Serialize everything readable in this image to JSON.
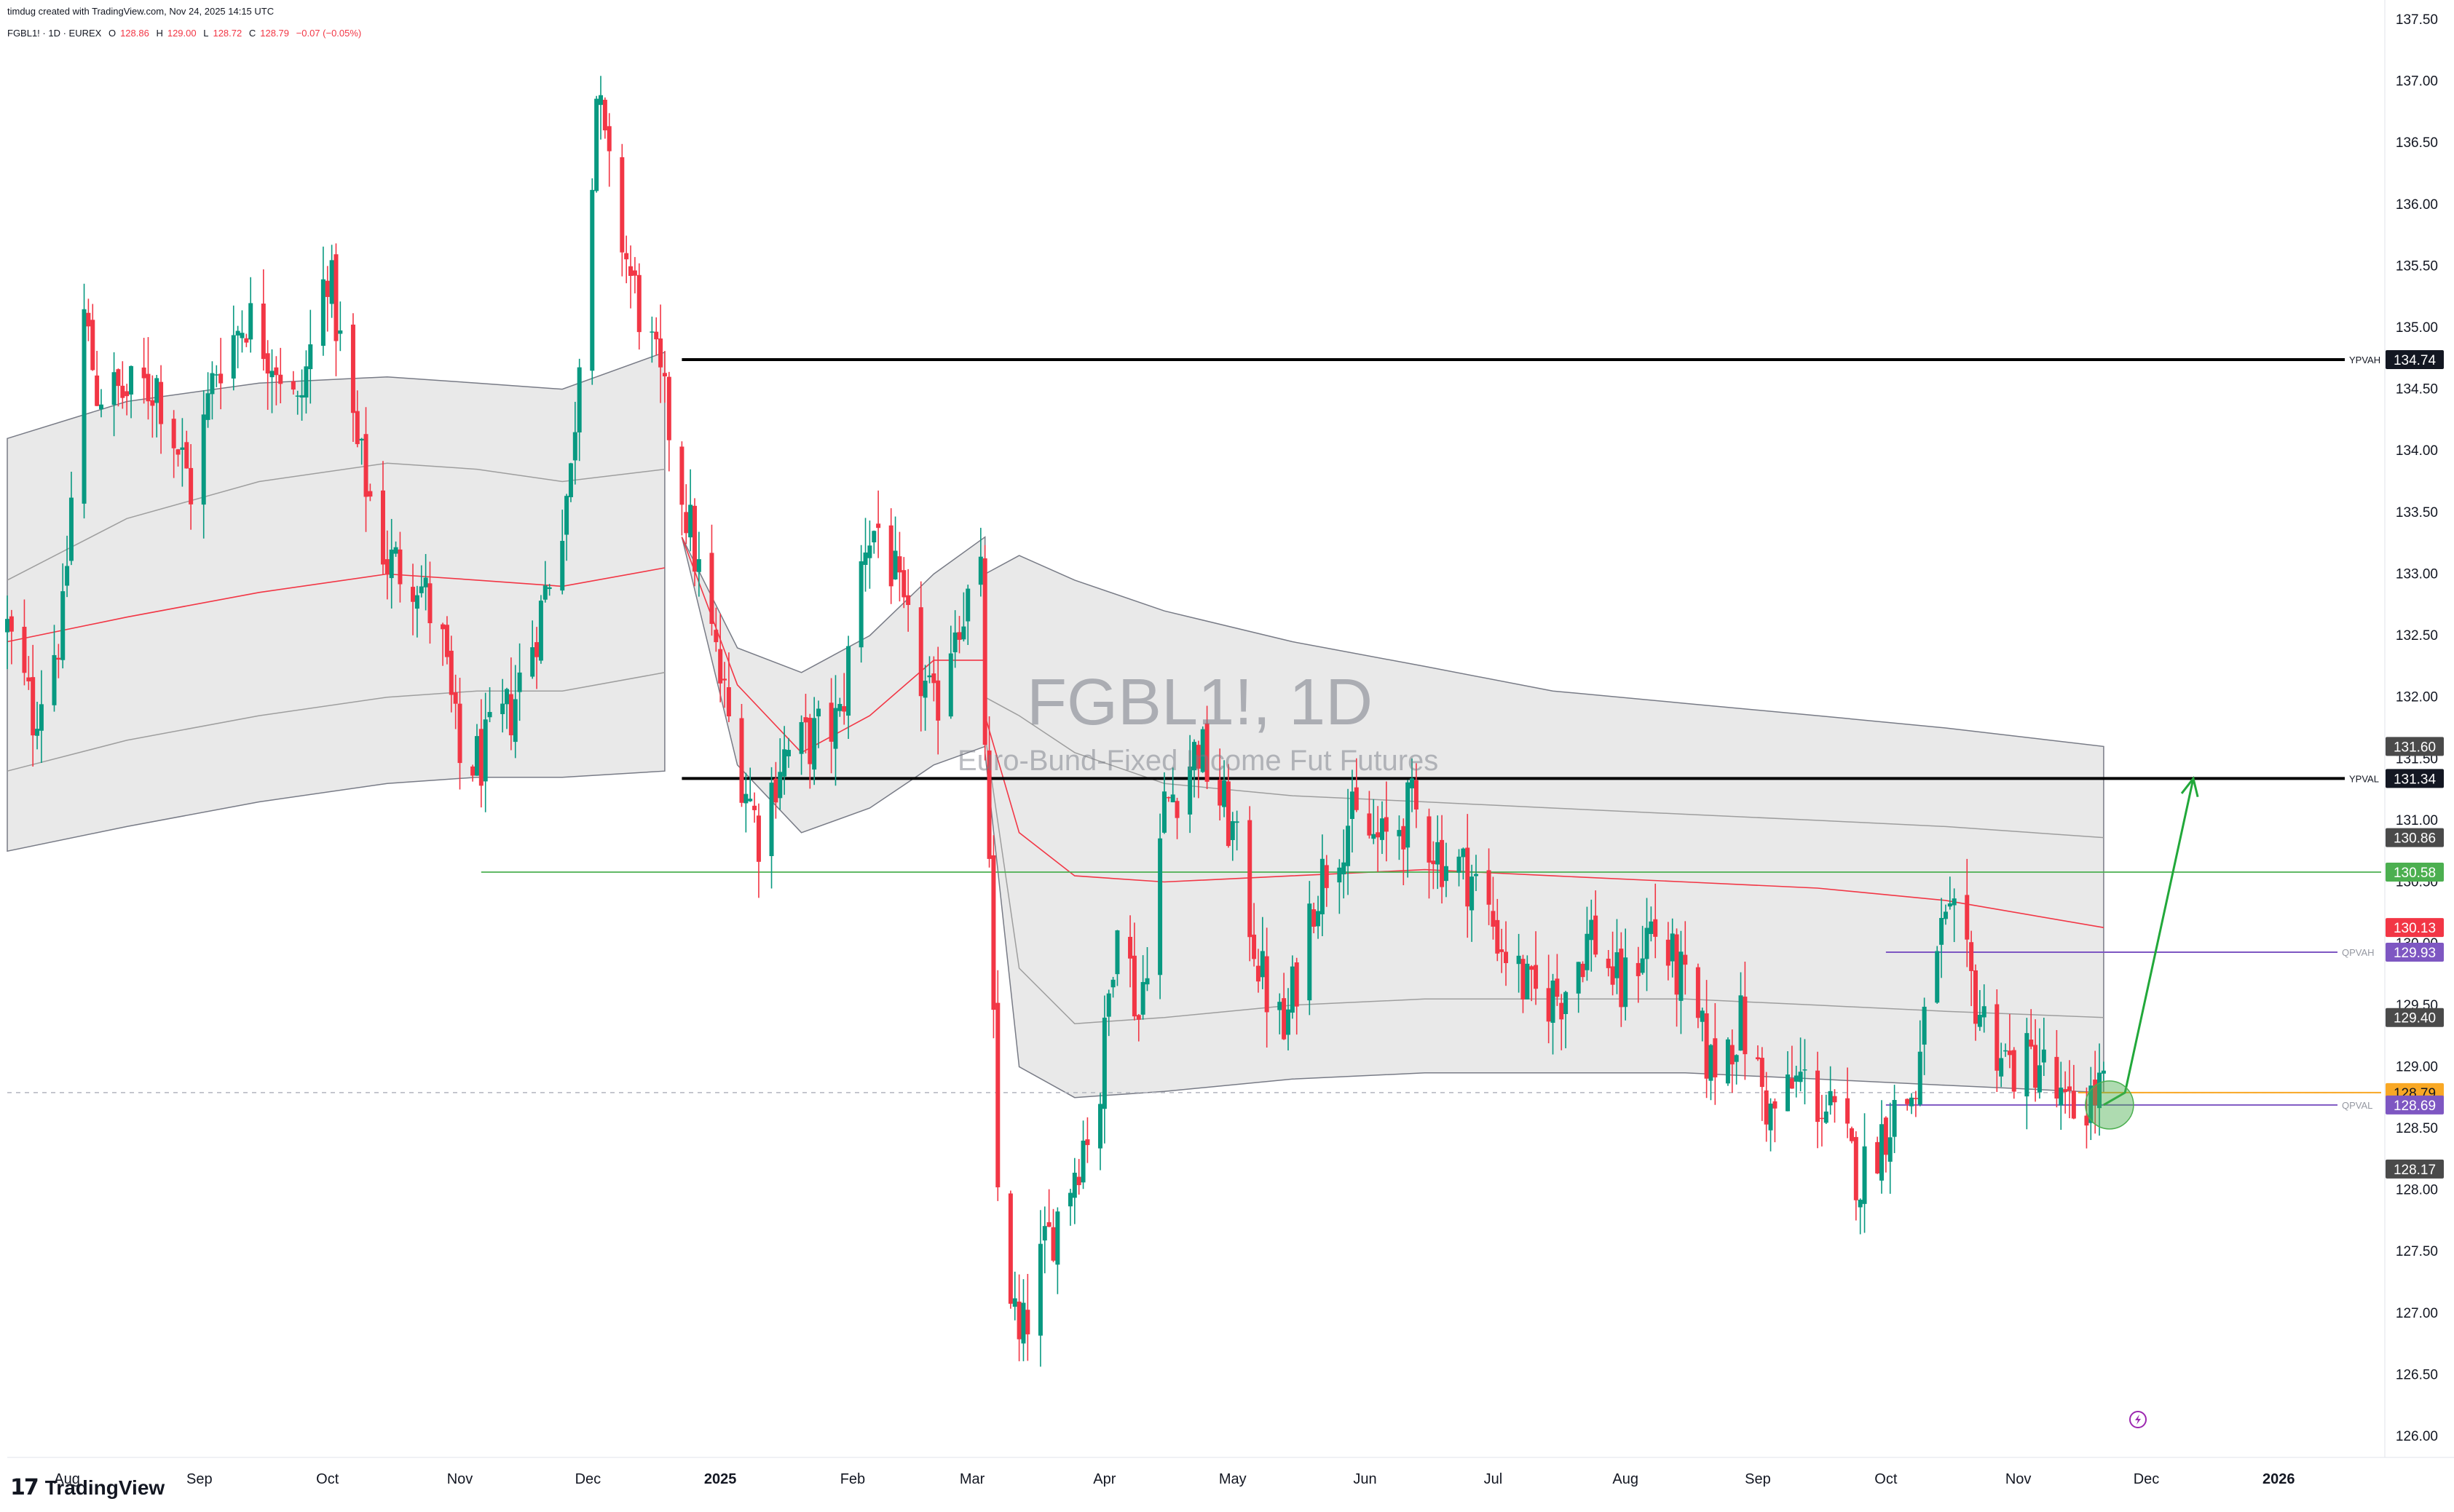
{
  "header": {
    "credit": "timdug created with TradingView.com, Nov 24, 2025 14:15 UTC",
    "symbol_line": "FGBL1! · 1D · EUREX",
    "o_label": "O",
    "o_value": "128.86",
    "h_label": "H",
    "h_value": "129.00",
    "l_label": "L",
    "l_value": "128.72",
    "c_label": "C",
    "c_value": "128.79",
    "change": "−0.07 (−0.05%)"
  },
  "watermark": {
    "symbol": "FGBL1!, 1D",
    "description": "Euro-Bund-Fixed Income Fut Futures"
  },
  "branding": {
    "logo_mark": "17",
    "logo_text": "TradingView"
  },
  "colors": {
    "up": "#089981",
    "down": "#f23645",
    "band_fill": "#e8e8e8",
    "vwap_line": "#f23645",
    "std_line": "#9e9e9e",
    "level_line": "#000000",
    "poc_green": "#4caf50",
    "qvah_purple": "#7e57c2",
    "last_price": "#f9a825",
    "arrow": "#22a83a"
  },
  "chart_data": {
    "type": "candlestick",
    "title": "FGBL1!, 1D",
    "x_ticks": [
      "Aug",
      "Sep",
      "Oct",
      "Nov",
      "Dec",
      "2025",
      "Feb",
      "Mar",
      "Apr",
      "May",
      "Jun",
      "Jul",
      "Aug",
      "Sep",
      "Oct",
      "Nov",
      "Dec",
      "2026"
    ],
    "y_ticks": [
      "126.00",
      "126.50",
      "127.00",
      "127.50",
      "128.00",
      "128.50",
      "129.00",
      "129.50",
      "130.00",
      "130.50",
      "131.00",
      "131.50",
      "132.00",
      "132.50",
      "133.00",
      "133.50",
      "134.00",
      "134.50",
      "135.00",
      "135.50",
      "136.00",
      "136.50",
      "137.00",
      "137.50"
    ],
    "ylim": [
      125.9,
      137.6
    ],
    "x_range": [
      "2024-07-18",
      "2026-01-25"
    ],
    "grid": false,
    "levels": [
      {
        "label": "YPVAH",
        "price": 134.74,
        "tag": "134.74",
        "start": "2024-12-23"
      },
      {
        "label": "YPVAL",
        "price": 131.34,
        "tag": "131.34",
        "start": "2024-12-23"
      },
      {
        "label": "",
        "price": 130.58,
        "tag": "130.58",
        "start": "2024-11-06"
      },
      {
        "label": "QPVAH",
        "price": 129.93,
        "tag": "129.93",
        "start": "2025-10-01"
      },
      {
        "label": "QPVAL",
        "price": 128.69,
        "tag": "128.69",
        "start": "2025-10-01"
      }
    ],
    "price_tags": [
      {
        "price": 131.6,
        "tag": "131.60"
      },
      {
        "price": 130.86,
        "tag": "130.86"
      },
      {
        "price": 130.13,
        "tag": "130.13"
      },
      {
        "price": 129.4,
        "tag": "129.40"
      },
      {
        "price": 128.79,
        "tag": "128.79"
      },
      {
        "price": 128.17,
        "tag": "128.17"
      }
    ],
    "last_price": 128.79,
    "projection": {
      "points": [
        [
          "2025-11-21",
          128.69
        ],
        [
          "2025-11-26",
          128.79
        ],
        [
          "2025-12-12",
          131.34
        ]
      ],
      "highlight": {
        "date": "2025-11-21",
        "price": 128.69
      }
    },
    "anchored_vwap_1": {
      "dates": [
        "2024-07-18",
        "2024-08-15",
        "2024-09-15",
        "2024-10-15",
        "2024-11-05",
        "2024-11-25",
        "2024-12-19"
      ],
      "upper": [
        134.1,
        134.4,
        134.55,
        134.6,
        134.55,
        134.5,
        134.8
      ],
      "upper_inner": [
        132.95,
        133.45,
        133.75,
        133.9,
        133.85,
        133.75,
        133.85
      ],
      "vwap": [
        132.45,
        132.65,
        132.85,
        133.0,
        132.95,
        132.9,
        133.05
      ],
      "lower_inner": [
        131.4,
        131.65,
        131.85,
        132.0,
        132.05,
        132.05,
        132.2
      ],
      "lower": [
        130.75,
        130.95,
        131.15,
        131.3,
        131.35,
        131.35,
        131.4
      ]
    },
    "anchored_vwap_2": {
      "dates": [
        "2024-12-23",
        "2025-01-05",
        "2025-01-20",
        "2025-02-05",
        "2025-02-20",
        "2025-03-04"
      ],
      "upper": [
        133.3,
        132.4,
        132.2,
        132.5,
        133.0,
        133.3
      ],
      "vwap": [
        133.3,
        132.1,
        131.55,
        131.85,
        132.3,
        132.3
      ],
      "lower": [
        133.3,
        131.45,
        130.9,
        131.1,
        131.45,
        131.6
      ]
    },
    "anchored_vwap_3": {
      "dates": [
        "2025-03-04",
        "2025-03-12",
        "2025-03-25",
        "2025-04-15",
        "2025-05-15",
        "2025-06-15",
        "2025-07-15",
        "2025-08-15",
        "2025-09-15",
        "2025-10-15",
        "2025-11-21"
      ],
      "upper": [
        133.0,
        133.15,
        132.95,
        132.7,
        132.45,
        132.25,
        132.05,
        131.95,
        131.85,
        131.75,
        131.6
      ],
      "upper_inner": [
        132.0,
        131.85,
        131.55,
        131.3,
        131.2,
        131.15,
        131.1,
        131.05,
        131.0,
        130.95,
        130.86
      ],
      "vwap": [
        131.85,
        130.9,
        130.55,
        130.5,
        130.55,
        130.6,
        130.55,
        130.5,
        130.45,
        130.35,
        130.13
      ],
      "lower_inner": [
        131.7,
        129.8,
        129.35,
        129.4,
        129.5,
        129.55,
        129.55,
        129.55,
        129.5,
        129.45,
        129.4
      ],
      "lower": [
        131.55,
        129.0,
        128.75,
        128.8,
        128.9,
        128.95,
        128.95,
        128.95,
        128.9,
        128.85,
        128.79
      ]
    },
    "price_path": [
      [
        "2024-07-18",
        132.55
      ],
      [
        "2024-07-24",
        131.85
      ],
      [
        "2024-07-31",
        132.6
      ],
      [
        "2024-08-05",
        135.1
      ],
      [
        "2024-08-08",
        134.5
      ],
      [
        "2024-08-15",
        134.45
      ],
      [
        "2024-08-22",
        134.55
      ],
      [
        "2024-08-30",
        133.7
      ],
      [
        "2024-09-05",
        134.7
      ],
      [
        "2024-09-12",
        135.1
      ],
      [
        "2024-09-19",
        134.75
      ],
      [
        "2024-09-24",
        134.3
      ],
      [
        "2024-10-01",
        135.5
      ],
      [
        "2024-10-08",
        134.0
      ],
      [
        "2024-10-15",
        133.1
      ],
      [
        "2024-10-22",
        133.0
      ],
      [
        "2024-10-28",
        132.4
      ],
      [
        "2024-11-01",
        131.45
      ],
      [
        "2024-11-06",
        131.5
      ],
      [
        "2024-11-13",
        131.9
      ],
      [
        "2024-11-20",
        132.7
      ],
      [
        "2024-11-27",
        133.8
      ],
      [
        "2024-12-03",
        136.9
      ],
      [
        "2024-12-06",
        136.2
      ],
      [
        "2024-12-11",
        135.4
      ],
      [
        "2024-12-16",
        134.8
      ],
      [
        "2024-12-20",
        134.2
      ],
      [
        "2024-12-27",
        133.0
      ],
      [
        "2025-01-03",
        131.8
      ],
      [
        "2025-01-10",
        130.9
      ],
      [
        "2025-01-15",
        131.5
      ],
      [
        "2025-01-22",
        131.65
      ],
      [
        "2025-01-29",
        131.8
      ],
      [
        "2025-02-04",
        133.3
      ],
      [
        "2025-02-08",
        133.4
      ],
      [
        "2025-02-13",
        132.6
      ],
      [
        "2025-02-20",
        131.85
      ],
      [
        "2025-02-25",
        132.65
      ],
      [
        "2025-03-03",
        132.9
      ],
      [
        "2025-03-05",
        130.5
      ],
      [
        "2025-03-07",
        128.0
      ],
      [
        "2025-03-12",
        126.7
      ],
      [
        "2025-03-17",
        127.4
      ],
      [
        "2025-03-24",
        128.1
      ],
      [
        "2025-03-31",
        128.8
      ],
      [
        "2025-04-04",
        130.35
      ],
      [
        "2025-04-09",
        129.4
      ],
      [
        "2025-04-15",
        131.1
      ],
      [
        "2025-04-23",
        131.6
      ],
      [
        "2025-05-01",
        130.9
      ],
      [
        "2025-05-08",
        129.7
      ],
      [
        "2025-05-13",
        129.25
      ],
      [
        "2025-05-20",
        130.4
      ],
      [
        "2025-05-28",
        131.0
      ],
      [
        "2025-06-05",
        130.8
      ],
      [
        "2025-06-12",
        131.1
      ],
      [
        "2025-06-19",
        130.7
      ],
      [
        "2025-06-26",
        130.55
      ],
      [
        "2025-07-03",
        130.0
      ],
      [
        "2025-07-10",
        129.55
      ],
      [
        "2025-07-17",
        129.6
      ],
      [
        "2025-07-24",
        130.1
      ],
      [
        "2025-07-31",
        129.6
      ],
      [
        "2025-08-07",
        130.15
      ],
      [
        "2025-08-14",
        129.7
      ],
      [
        "2025-08-21",
        129.0
      ],
      [
        "2025-08-28",
        129.35
      ],
      [
        "2025-09-04",
        128.6
      ],
      [
        "2025-09-11",
        128.9
      ],
      [
        "2025-09-18",
        128.6
      ],
      [
        "2025-09-25",
        128.1
      ],
      [
        "2025-10-02",
        128.6
      ],
      [
        "2025-10-08",
        128.8
      ],
      [
        "2025-10-13",
        130.05
      ],
      [
        "2025-10-17",
        130.1
      ],
      [
        "2025-10-23",
        129.45
      ],
      [
        "2025-10-30",
        129.0
      ],
      [
        "2025-11-06",
        129.05
      ],
      [
        "2025-11-12",
        128.6
      ],
      [
        "2025-11-20",
        128.8
      ],
      [
        "2025-11-21",
        128.79
      ]
    ]
  }
}
